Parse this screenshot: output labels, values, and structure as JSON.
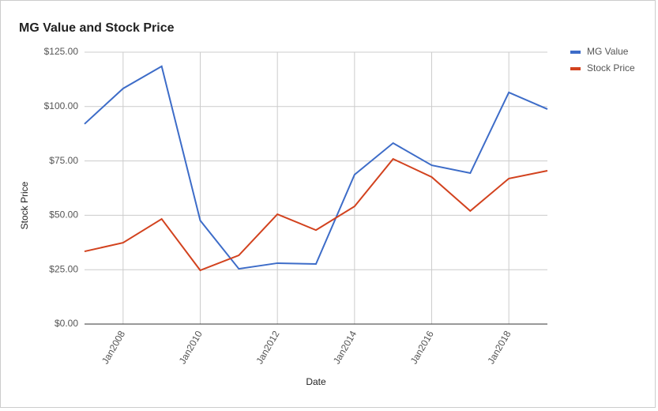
{
  "chart_data": {
    "type": "line",
    "title": "MG Value and Stock Price",
    "x_label": "Date",
    "y_label": "Stock Price",
    "x": [
      "2007-01",
      "2008-01",
      "2009-01",
      "2010-01",
      "2011-01",
      "2012-01",
      "2013-01",
      "2014-01",
      "2015-01",
      "2016-01",
      "2017-01",
      "2018-01",
      "2019-01"
    ],
    "series": [
      {
        "name": "MG Value",
        "color": "#3d6cc8",
        "values": [
          92,
          108.3,
          118.5,
          47.6,
          25.4,
          28,
          27.6,
          68.7,
          83.2,
          73,
          69.4,
          106.5,
          98.8
        ]
      },
      {
        "name": "Stock Price",
        "color": "#d2421e",
        "values": [
          33.4,
          37.4,
          48.3,
          24.7,
          31.6,
          50.5,
          43.2,
          54.1,
          75.9,
          67.6,
          52,
          66.9,
          70.5
        ]
      }
    ],
    "xlim": [
      "2007-01",
      "2019-01"
    ],
    "xticks": [
      {
        "value": "2008-01",
        "label": "Jan2008"
      },
      {
        "value": "2010-01",
        "label": "Jan2010"
      },
      {
        "value": "2012-01",
        "label": "Jan2012"
      },
      {
        "value": "2014-01",
        "label": "Jan2014"
      },
      {
        "value": "2016-01",
        "label": "Jan2016"
      },
      {
        "value": "2018-01",
        "label": "Jan2018"
      }
    ],
    "ylim": [
      0,
      125
    ],
    "yticks": [
      {
        "value": 0,
        "label": "$0.00"
      },
      {
        "value": 25,
        "label": "$25.00"
      },
      {
        "value": 50,
        "label": "$50.00"
      },
      {
        "value": 75,
        "label": "$75.00"
      },
      {
        "value": 100,
        "label": "$100.00"
      },
      {
        "value": 125,
        "label": "$125.00"
      }
    ],
    "grid": true,
    "legend": "right"
  }
}
